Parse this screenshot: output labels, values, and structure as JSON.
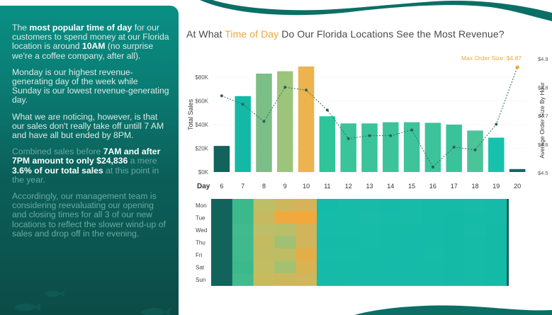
{
  "panel": {
    "p1": {
      "a": "The ",
      "b": "most popular time of day",
      "c": " for our customers to spend money at our Florida location is around ",
      "d": "10AM",
      "e": " (no surprise we're a coffee company, after all)."
    },
    "p2": "Monday is our highest revenue-generating day of the week while Sunday is our lowest revenue-generating day.",
    "p3": "What we are noticing, however, is that our sales don't really take off untill 7 AM and have all but ended by 8PM.",
    "p4": {
      "a": "Combined sales before ",
      "b": "7AM and after 7PM amount to only $24,836",
      "c": " a mere ",
      "d": "3.6% of our total sales",
      "e": " at this point in the year."
    },
    "p5": "Accordingly, our management team is considering reevaluating our opening and closing times for all 3 of our new locations to reflect the slower wind-up of sales and drop off in the evening."
  },
  "title": {
    "pre": "At What ",
    "accent": "Time of Day",
    "post": " Do Our Florida Locations See the Most Revenue?"
  },
  "chart_data": {
    "type": "bar",
    "x_label": "Day",
    "categories": [
      "6",
      "7",
      "8",
      "9",
      "10",
      "11",
      "12",
      "13",
      "14",
      "15",
      "16",
      "17",
      "18",
      "19",
      "20"
    ],
    "ylabel": "Total Sales",
    "y2label": "Average Order Size By Hour",
    "y_ticks": [
      "$0K",
      "$20K",
      "$40K",
      "$60K",
      "$80K"
    ],
    "y2_ticks": [
      "$4.5",
      "$4.6",
      "$4.7",
      "$4.8",
      "$4.9"
    ],
    "ylim": [
      0,
      90000
    ],
    "y2lim": [
      4.5,
      4.9
    ],
    "series": [
      {
        "values": [
          22000,
          64000,
          83000,
          85000,
          89000,
          47000,
          41000,
          41000,
          42000,
          42000,
          41500,
          40000,
          35000,
          29000,
          2500
        ]
      },
      {
        "values": [
          4.77,
          4.74,
          4.68,
          4.8,
          4.79,
          4.72,
          4.62,
          4.63,
          4.63,
          4.65,
          4.52,
          4.59,
          4.58,
          4.67,
          4.87
        ]
      }
    ],
    "max_label": "Max Order Size: $4.87",
    "bar_colors": [
      "#11635c",
      "#14b9a6",
      "#7bbe86",
      "#9cc57b",
      "#ecb34e",
      "#2fc49a",
      "#3bc39a",
      "#3bc39a",
      "#3cc39a",
      "#3fc39a",
      "#3cc39a",
      "#3ac39a",
      "#4bc49a",
      "#17c2ad",
      "#0f6a62"
    ]
  },
  "heatmap": {
    "rows": [
      "Mon",
      "Tue",
      "Wed",
      "Thu",
      "Fri",
      "Sat",
      "Sun"
    ],
    "colors": [
      [
        "#11635c",
        "#3cb98c",
        "#bdbf66",
        "#cdb75c",
        "#d6b359",
        "#14bba8",
        "#17bca9",
        "#17bba8",
        "#15bba8",
        "#17bca9",
        "#16bba8",
        "#16bba8",
        "#18bba8",
        "#15bba6",
        "#0c5a54"
      ],
      [
        "#11635c",
        "#3bb98b",
        "#c5ba60",
        "#f0a93e",
        "#f3a83c",
        "#16bba9",
        "#17bca9",
        "#18bca9",
        "#17bca9",
        "#17bba8",
        "#16bba8",
        "#15baa7",
        "#16bba8",
        "#15bba6",
        "#0c5a54"
      ],
      [
        "#11635c",
        "#41ba8d",
        "#bcbf68",
        "#b9bf69",
        "#d2b45a",
        "#16bba9",
        "#17bca9",
        "#17bca9",
        "#16bba8",
        "#16bba8",
        "#15bba8",
        "#15baa7",
        "#17bba8",
        "#14baa6",
        "#0c5a54"
      ],
      [
        "#11635c",
        "#40ba8c",
        "#c4bb60",
        "#a0c074",
        "#d0b55b",
        "#15bba8",
        "#16bba8",
        "#17bca9",
        "#16bba8",
        "#15bba8",
        "#16bba8",
        "#15baa7",
        "#16bba8",
        "#14baa6",
        "#0c5a54"
      ],
      [
        "#11635c",
        "#3fba8c",
        "#c0bc63",
        "#bebd64",
        "#e3ad4a",
        "#16bba9",
        "#17bca9",
        "#16bba8",
        "#16bba8",
        "#15bba8",
        "#17bba8",
        "#15baa7",
        "#15bba7",
        "#14baa6",
        "#0c5a54"
      ],
      [
        "#11635c",
        "#3cb98b",
        "#c2bc62",
        "#a4c172",
        "#d9b252",
        "#15bba8",
        "#16bba8",
        "#16bba8",
        "#15bba8",
        "#16bba8",
        "#16bba8",
        "#15baa7",
        "#15bba7",
        "#13baa6",
        "#0c5a54"
      ],
      [
        "#11635c",
        "#41ba8d",
        "#c8ba5e",
        "#ccb85c",
        "#d0b65c",
        "#15bba8",
        "#16bba8",
        "#15bba8",
        "#15bba8",
        "#15bba8",
        "#15bba8",
        "#14baa7",
        "#15bba7",
        "#13baa6",
        "#0c5a54"
      ]
    ]
  }
}
